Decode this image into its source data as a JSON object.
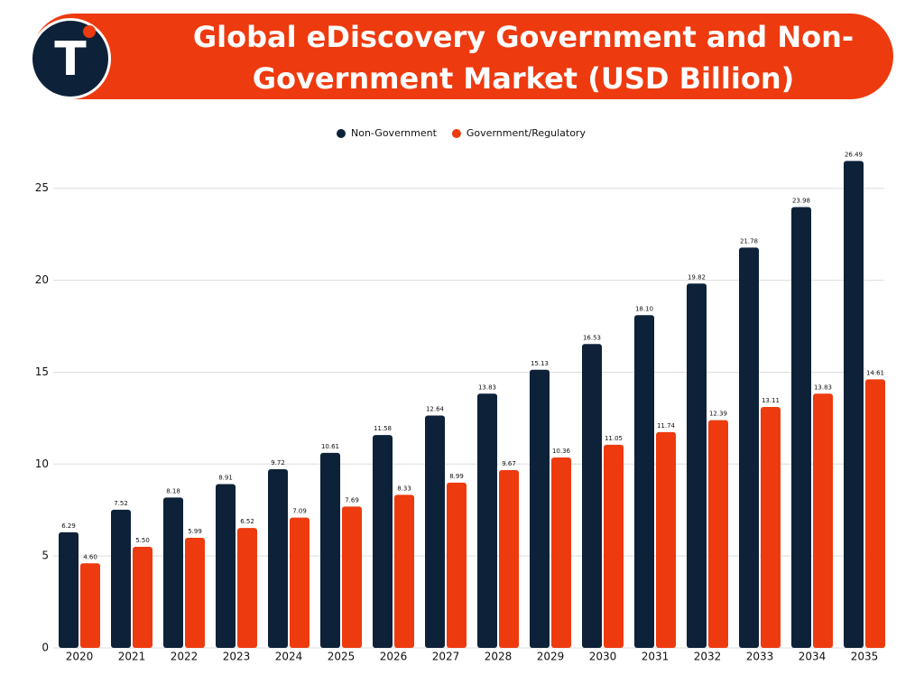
{
  "logo_text": "T",
  "chart_data": {
    "type": "bar",
    "title": "Global eDiscovery Government and Non-Government Market (USD Billion)",
    "categories": [
      "2020",
      "2021",
      "2022",
      "2023",
      "2024",
      "2025",
      "2026",
      "2027",
      "2028",
      "2029",
      "2030",
      "2031",
      "2032",
      "2033",
      "2034",
      "2035"
    ],
    "series": [
      {
        "name": "Non-Government",
        "color": "#0d2238",
        "values": [
          6.29,
          7.52,
          8.18,
          8.91,
          9.72,
          10.61,
          11.58,
          12.64,
          13.83,
          15.13,
          16.53,
          18.1,
          19.82,
          21.78,
          23.98,
          26.49
        ],
        "value_labels": [
          "6.29",
          "7.52",
          "8.18",
          "8.91",
          "9.72",
          "10.61",
          "11.58",
          "12.64",
          "13.83",
          "15.13",
          "16.53",
          "18.10",
          "19.82",
          "21.78",
          "23.98",
          "26.49"
        ]
      },
      {
        "name": "Government/Regulatory",
        "color": "#ee3a0f",
        "values": [
          4.6,
          5.5,
          5.99,
          6.52,
          7.09,
          7.69,
          8.33,
          8.99,
          9.67,
          10.36,
          11.05,
          11.74,
          12.39,
          13.11,
          13.83,
          14.61
        ],
        "value_labels": [
          "4.60",
          "5.50",
          "5.99",
          "6.52",
          "7.09",
          "7.69",
          "8.33",
          "8.99",
          "9.67",
          "10.36",
          "11.05",
          "11.74",
          "12.39",
          "13.11",
          "13.83",
          "14.61"
        ]
      }
    ],
    "ylim": [
      0,
      27
    ],
    "yticks": [
      0,
      5,
      10,
      15,
      20,
      25
    ],
    "grid": true,
    "legend": "top"
  }
}
